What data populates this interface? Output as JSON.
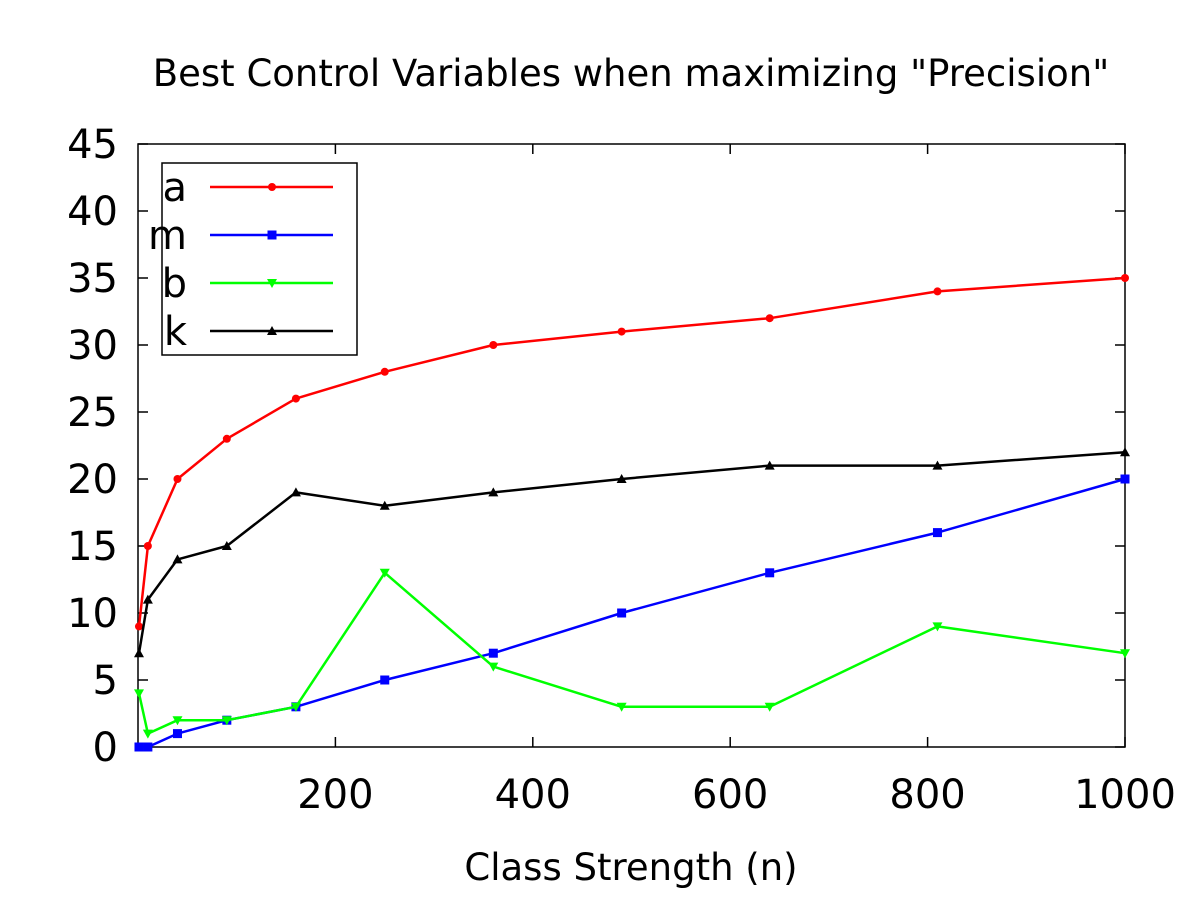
{
  "chart_data": {
    "type": "line",
    "title": "Best Control Variables when maximizing \"Precision\"",
    "xlabel": "Class Strength (n)",
    "ylabel": "",
    "xlim": [
      0,
      1000
    ],
    "ylim": [
      0,
      45
    ],
    "x_ticks": [
      200,
      400,
      600,
      800,
      1000
    ],
    "y_ticks": [
      0,
      5,
      10,
      15,
      20,
      25,
      30,
      35,
      40,
      45
    ],
    "grid": false,
    "legend_position": "top-left",
    "x": [
      1,
      10,
      40,
      90,
      160,
      250,
      360,
      490,
      640,
      810,
      1000
    ],
    "series": [
      {
        "name": "a",
        "color": "#ff0000",
        "marker": "circle",
        "values": [
          9,
          15,
          20,
          23,
          26,
          28,
          30,
          31,
          32,
          34,
          35
        ]
      },
      {
        "name": "m",
        "color": "#0000ff",
        "marker": "square",
        "values": [
          0,
          0,
          1,
          2,
          3,
          5,
          7,
          10,
          13,
          16,
          20
        ]
      },
      {
        "name": "b",
        "color": "#00ff00",
        "marker": "triangle-down",
        "values": [
          4,
          1,
          2,
          2,
          3,
          13,
          6,
          3,
          3,
          9,
          7
        ]
      },
      {
        "name": "k",
        "color": "#000000",
        "marker": "triangle-up",
        "values": [
          7,
          11,
          14,
          15,
          19,
          18,
          19,
          20,
          21,
          21,
          22
        ]
      }
    ]
  }
}
